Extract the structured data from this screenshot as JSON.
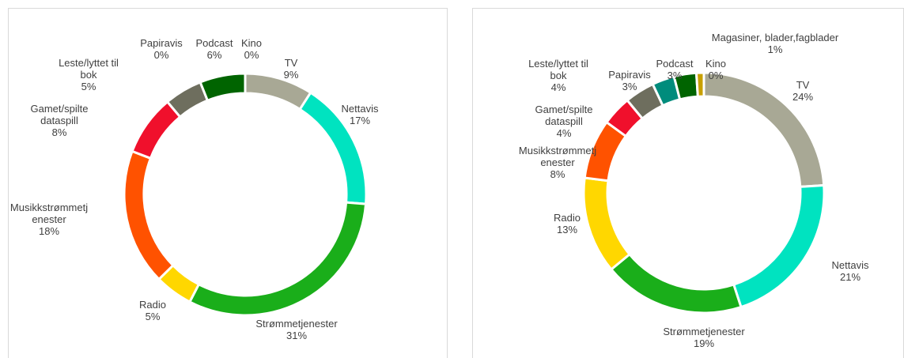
{
  "chart_data": [
    {
      "type": "doughnut",
      "categories": [
        "TV",
        "Nettavis",
        "Strømmetjenester",
        "Radio",
        "Musikkstrømmetjenester",
        "Gamet/spilte dataspill",
        "Leste/lyttet til bok",
        "Papiravis",
        "Podcast",
        "Kino"
      ],
      "values": [
        9,
        17,
        31,
        5,
        18,
        8,
        5,
        0,
        6,
        0
      ],
      "value_labels": [
        "9%",
        "17%",
        "31%",
        "5%",
        "18%",
        "8%",
        "5%",
        "0%",
        "6%",
        "0%"
      ],
      "colors": [
        "#a8a895",
        "#00e3c0",
        "#1aae1a",
        "#ffd700",
        "#ff5200",
        "#f0102c",
        "#6e6e5e",
        "#008c7c",
        "#006400",
        "#c8a000"
      ]
    },
    {
      "type": "doughnut",
      "categories": [
        "TV",
        "Nettavis",
        "Strømmetjenester",
        "Radio",
        "Musikkstrømmetjenester",
        "Gamet/spilte dataspill",
        "Leste/lyttet til bok",
        "Papiravis",
        "Podcast",
        "Kino",
        "Magasiner, blader,fagblader"
      ],
      "values": [
        24,
        21,
        19,
        13,
        8,
        4,
        4,
        3,
        3,
        0,
        1
      ],
      "value_labels": [
        "24%",
        "21%",
        "19%",
        "13%",
        "8%",
        "4%",
        "4%",
        "3%",
        "3%",
        "0%",
        "1%"
      ],
      "colors": [
        "#a8a895",
        "#00e3c0",
        "#1aae1a",
        "#ffd700",
        "#ff5200",
        "#f0102c",
        "#6e6e5e",
        "#008c7c",
        "#006400",
        "#6e6e5e",
        "#c8a000"
      ]
    }
  ]
}
